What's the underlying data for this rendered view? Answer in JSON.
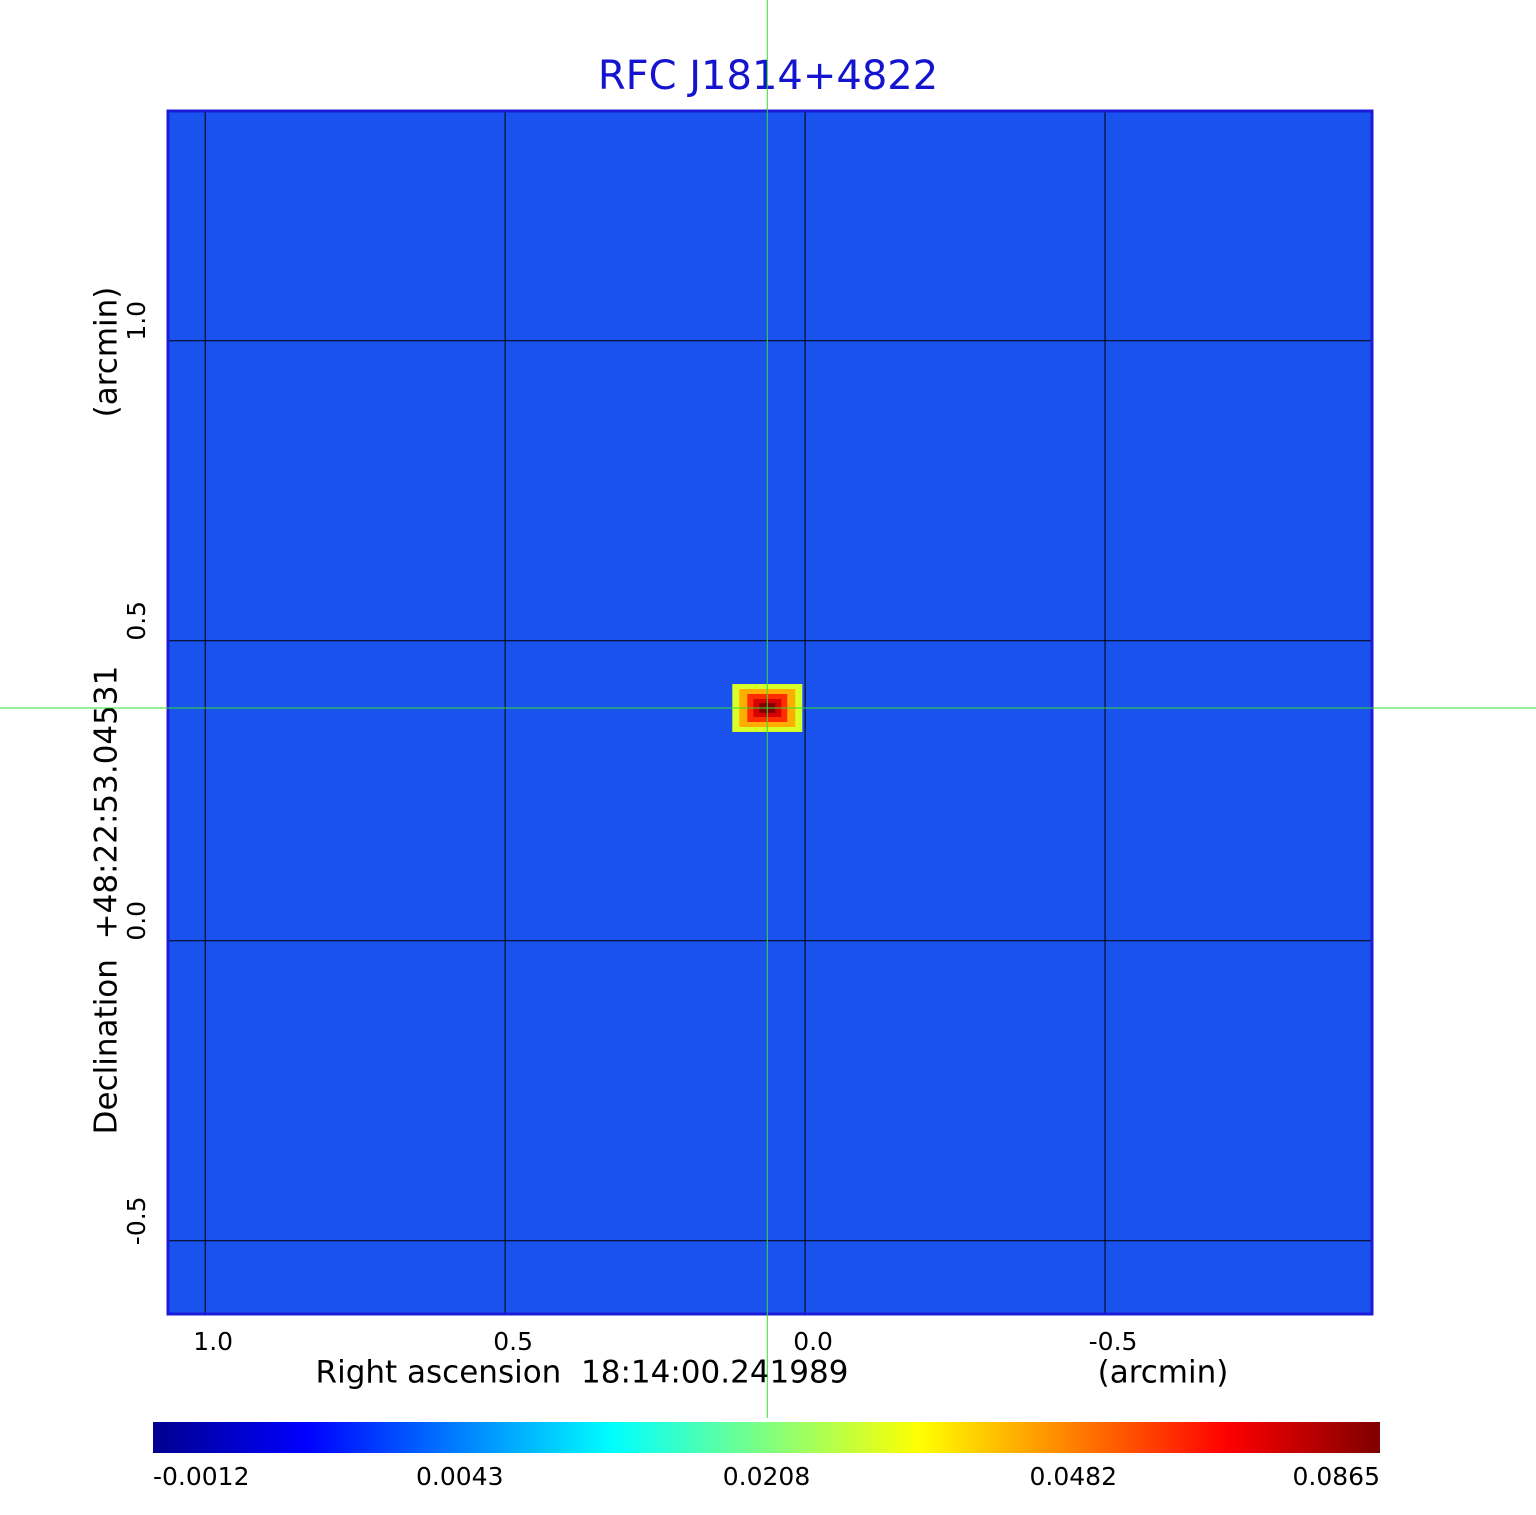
{
  "chart_data": {
    "type": "image",
    "title": "RFC J1814+4822",
    "xlabel": "Right ascension  18:14:00.241989",
    "xunit": "(arcmin)",
    "ylabel": "Declination  +48:22:53.04531",
    "yunit": "(arcmin)",
    "xlim": [
      1.062,
      -0.945
    ],
    "ylim": [
      -0.622,
      1.383
    ],
    "xticks": [
      {
        "value": 1,
        "label": "1.0"
      },
      0.5,
      {
        "value": 0,
        "label": "0.0"
      },
      -0.5
    ],
    "yticks": [
      {
        "value": 1,
        "label": "1.0"
      },
      0.5,
      {
        "value": 0,
        "label": "0.0"
      },
      -0.5
    ],
    "grid": true,
    "colormap": "jet",
    "colorbar_ticks": [
      -0.0012,
      0.0043,
      0.0208,
      0.0482,
      0.0865
    ],
    "crosshair": {
      "x": 0.063,
      "y": 0.388,
      "color": "#33dd33"
    },
    "source": {
      "x": 0.063,
      "y": 0.388,
      "peak": 0.0865
    }
  }
}
